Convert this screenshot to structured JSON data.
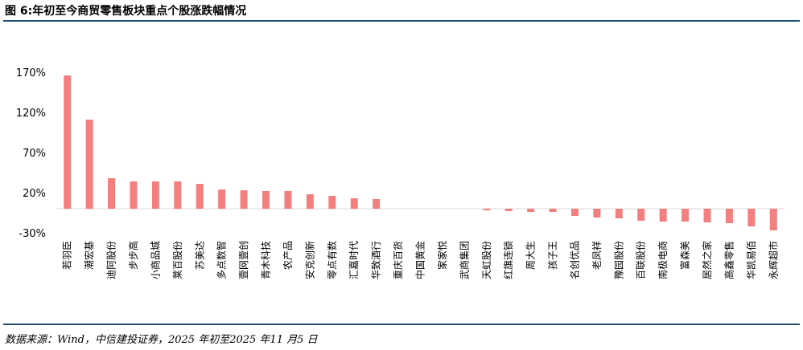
{
  "header": {
    "title": "图 6:年初至今商贸零售板块重点个股涨跌幅情况"
  },
  "footer": {
    "source": "数据来源：Wind，中信建投证券，2025 年初至2025 年11 月5 日"
  },
  "colors": {
    "bar": "#f47f7f",
    "rule": "#1f4e79",
    "baseline": "#d9d9d9"
  },
  "chart_data": {
    "type": "bar",
    "title": "",
    "xlabel": "",
    "ylabel": "",
    "ylim": [
      -30,
      190
    ],
    "yticks": [
      -30,
      20,
      70,
      120,
      170
    ],
    "ytick_labels": [
      "-30%",
      "20%",
      "70%",
      "120%",
      "170%"
    ],
    "grid": false,
    "categories": [
      "若羽臣",
      "潮宏基",
      "迪阿股份",
      "步步高",
      "小商品城",
      "莱百股份",
      "苏美达",
      "多点数智",
      "壹网壹创",
      "青木科技",
      "农产品",
      "安克创新",
      "零点有数",
      "汇嘉时代",
      "华致酒行",
      "重庆百货",
      "中国黄金",
      "家家悦",
      "武商集团",
      "天虹股份",
      "红旗连锁",
      "周大生",
      "孩子王",
      "名创优品",
      "老凤祥",
      "豫园股份",
      "百联股份",
      "南极电商",
      "富森美",
      "居然之家",
      "高鑫零售",
      "华凯易佰",
      "永辉超市"
    ],
    "values": [
      166,
      111,
      38,
      34,
      34,
      34,
      31,
      24,
      23,
      22,
      22,
      18,
      16,
      13,
      12,
      0,
      0,
      0,
      0,
      -2,
      -3,
      -4,
      -4,
      -9,
      -11,
      -12,
      -15,
      -16,
      -16,
      -17,
      -18,
      -22,
      -27
    ]
  }
}
